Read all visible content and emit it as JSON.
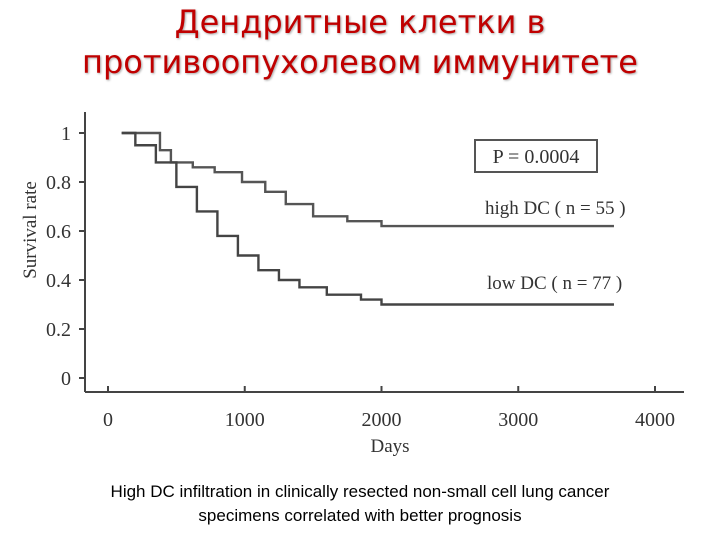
{
  "slide": {
    "title_line1": "Дендритные клетки в",
    "title_line2": "противоопухолевом иммунитете",
    "caption_line1": "High DC  infiltration in clinically resected non-small cell lung cancer",
    "caption_line2": "specimens correlated with better prognosis"
  },
  "colors": {
    "title": "#c00000",
    "curve_high": "#555555",
    "curve_low": "#444444"
  },
  "chart_data": {
    "type": "line",
    "xlabel": "Days",
    "ylabel": "Survival rate",
    "xlim": [
      0,
      4000
    ],
    "ylim": [
      0,
      1
    ],
    "x_ticks": [
      "0",
      "1000",
      "2000",
      "3000",
      "4000"
    ],
    "y_ticks": [
      "0",
      "0.2",
      "0.4",
      "0.6",
      "0.8",
      "1"
    ],
    "annotation": "P = 0.0004",
    "series": [
      {
        "name": "high DC ( n = 55 )",
        "step": true,
        "x": [
          100,
          380,
          460,
          620,
          780,
          980,
          1150,
          1300,
          1500,
          1750,
          2000,
          3700
        ],
        "y": [
          1.0,
          0.93,
          0.88,
          0.86,
          0.84,
          0.8,
          0.76,
          0.71,
          0.66,
          0.64,
          0.62,
          0.62
        ]
      },
      {
        "name": "low DC ( n = 77 )",
        "step": true,
        "x": [
          100,
          200,
          350,
          500,
          650,
          800,
          950,
          1100,
          1250,
          1400,
          1600,
          1850,
          2000,
          3700
        ],
        "y": [
          1.0,
          0.95,
          0.88,
          0.78,
          0.68,
          0.58,
          0.5,
          0.44,
          0.4,
          0.37,
          0.34,
          0.32,
          0.3,
          0.3
        ]
      }
    ]
  }
}
